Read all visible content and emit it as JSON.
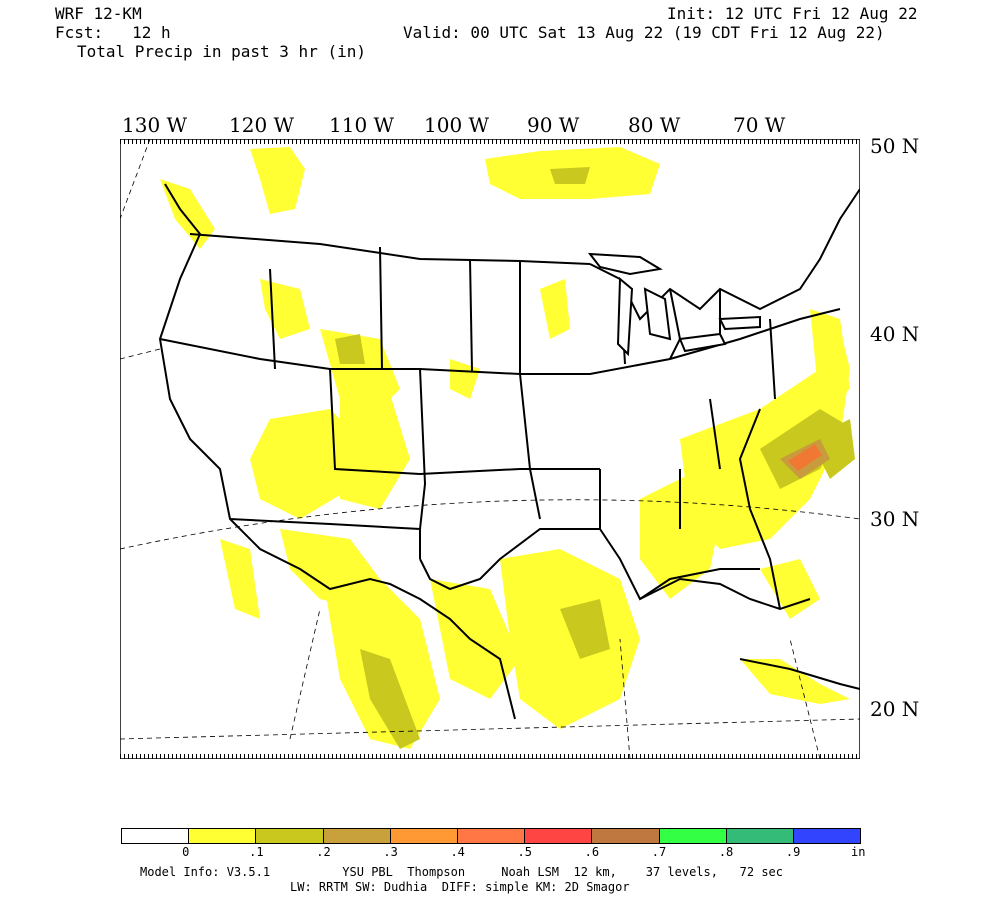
{
  "header": {
    "model": "WRF 12-KM",
    "forecast": "Fcst:   12 h",
    "field": "Total Precip in past 3 hr (in)",
    "init": "Init: 12 UTC Fri 12 Aug 22",
    "valid": "Valid: 00 UTC Sat 13 Aug 22 (19 CDT Fri 12 Aug 22)"
  },
  "map": {
    "longitude_labels": [
      "130 W",
      "120 W",
      "110 W",
      "100 W",
      "90 W",
      "80 W",
      "70 W"
    ],
    "latitude_labels": [
      "50 N",
      "40 N",
      "30 N",
      "20 N"
    ],
    "colors": {
      "land_line": "#000000",
      "grid_line": "#000000",
      "precip_light": "#ffff33",
      "precip_moderate": "#c8c81e",
      "precip_heavy": "#c89b3c",
      "precip_heavier": "#f07832"
    }
  },
  "legend": {
    "colors": [
      "#ffffff",
      "#ffff33",
      "#c8c81e",
      "#c8a03c",
      "#ff9933",
      "#ff7744",
      "#ff4444",
      "#c07841",
      "#33ff44",
      "#33bb77",
      "#3344ff"
    ],
    "labels": [
      "0",
      ".1",
      ".2",
      ".3",
      ".4",
      ".5",
      ".6",
      ".7",
      ".8",
      ".9",
      "in"
    ]
  },
  "footer": {
    "line1": "Model Info: V3.5.1          YSU PBL  Thompson     Noah LSM  12 km,    37 levels,   72 sec",
    "line2": "LW: RRTM SW: Dudhia  DIFF: simple KM: 2D Smagor"
  }
}
